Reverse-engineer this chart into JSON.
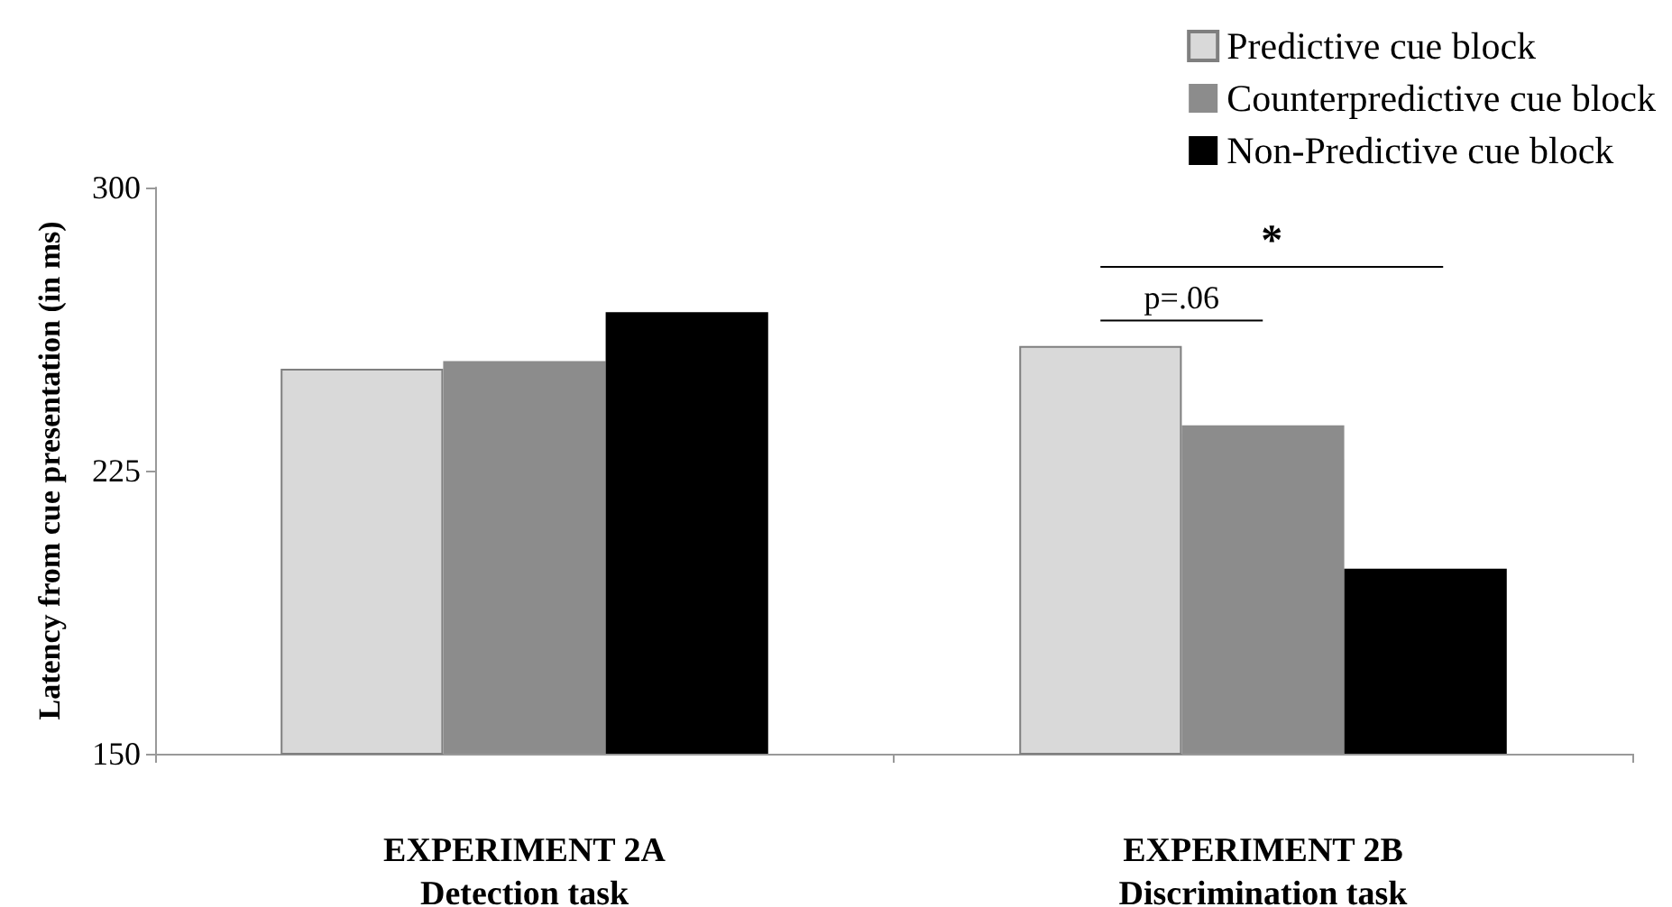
{
  "chart_data": {
    "type": "bar",
    "ylabel": "Latency from cue presentation (in ms)",
    "categories": [
      "EXPERIMENT 2A\nDetection task",
      "EXPERIMENT 2B\nDiscrimination task"
    ],
    "series": [
      {
        "name": "Predictive cue block",
        "color": "#d9d9d9",
        "values": [
          252,
          258
        ]
      },
      {
        "name": "Counterpredictive cue block",
        "color": "#8c8c8c",
        "values": [
          254,
          237
        ]
      },
      {
        "name": "Non-Predictive cue block",
        "color": "#000000",
        "values": [
          267,
          199
        ]
      }
    ],
    "ylim": [
      150,
      300
    ],
    "yticks": [
      150,
      225,
      300
    ],
    "grid": false,
    "legend": "top right",
    "annotations": [
      "p=.06",
      "*"
    ]
  }
}
